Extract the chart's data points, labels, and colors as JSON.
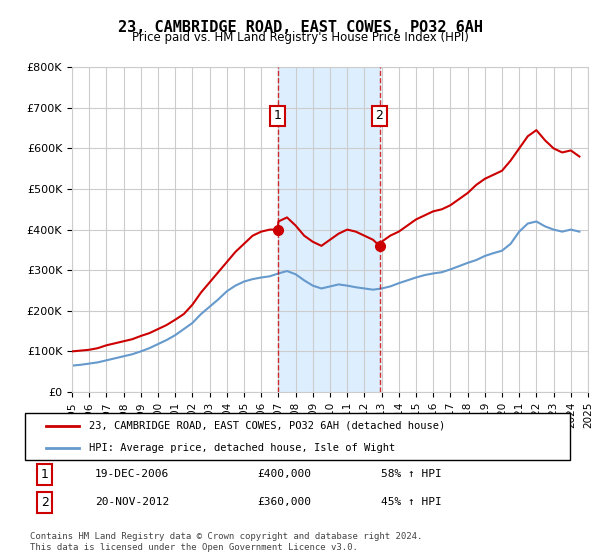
{
  "title": "23, CAMBRIDGE ROAD, EAST COWES, PO32 6AH",
  "subtitle": "Price paid vs. HM Land Registry's House Price Index (HPI)",
  "legend_line1": "23, CAMBRIDGE ROAD, EAST COWES, PO32 6AH (detached house)",
  "legend_line2": "HPI: Average price, detached house, Isle of Wight",
  "footnote": "Contains HM Land Registry data © Crown copyright and database right 2024.\nThis data is licensed under the Open Government Licence v3.0.",
  "sale1_label": "1",
  "sale1_date": "19-DEC-2006",
  "sale1_price": "£400,000",
  "sale1_hpi": "58% ↑ HPI",
  "sale1_year": 2006.96,
  "sale1_value": 400000,
  "sale2_label": "2",
  "sale2_date": "20-NOV-2012",
  "sale2_price": "£360,000",
  "sale2_hpi": "45% ↑ HPI",
  "sale2_year": 2012.88,
  "sale2_value": 360000,
  "ylim": [
    0,
    800000
  ],
  "xlim_start": 1995,
  "xlim_end": 2025,
  "red_color": "#cc0000",
  "blue_color": "#6699cc",
  "shade_color": "#ddeeff",
  "background_color": "#ffffff",
  "grid_color": "#cccccc",
  "years_red": [
    1995.0,
    1995.5,
    1996.0,
    1996.5,
    1997.0,
    1997.5,
    1998.0,
    1998.5,
    1999.0,
    1999.5,
    2000.0,
    2000.5,
    2001.0,
    2001.5,
    2002.0,
    2002.5,
    2003.0,
    2003.5,
    2004.0,
    2004.5,
    2005.0,
    2005.5,
    2006.0,
    2006.5,
    2006.96,
    2006.96,
    2007.0,
    2007.5,
    2008.0,
    2008.5,
    2009.0,
    2009.5,
    2010.0,
    2010.5,
    2011.0,
    2011.5,
    2012.0,
    2012.5,
    2012.88,
    2012.88,
    2013.0,
    2013.5,
    2014.0,
    2014.5,
    2015.0,
    2015.5,
    2016.0,
    2016.5,
    2017.0,
    2017.5,
    2018.0,
    2018.5,
    2019.0,
    2019.5,
    2020.0,
    2020.5,
    2021.0,
    2021.5,
    2022.0,
    2022.5,
    2023.0,
    2023.5,
    2024.0,
    2024.5
  ],
  "values_red": [
    100000,
    102000,
    104000,
    108000,
    115000,
    120000,
    125000,
    130000,
    138000,
    145000,
    155000,
    165000,
    178000,
    192000,
    215000,
    245000,
    270000,
    295000,
    320000,
    345000,
    365000,
    385000,
    395000,
    400000,
    400000,
    400000,
    420000,
    430000,
    410000,
    385000,
    370000,
    360000,
    375000,
    390000,
    400000,
    395000,
    385000,
    375000,
    360000,
    360000,
    370000,
    385000,
    395000,
    410000,
    425000,
    435000,
    445000,
    450000,
    460000,
    475000,
    490000,
    510000,
    525000,
    535000,
    545000,
    570000,
    600000,
    630000,
    645000,
    620000,
    600000,
    590000,
    595000,
    580000
  ],
  "years_blue": [
    1995.0,
    1995.5,
    1996.0,
    1996.5,
    1997.0,
    1997.5,
    1998.0,
    1998.5,
    1999.0,
    1999.5,
    2000.0,
    2000.5,
    2001.0,
    2001.5,
    2002.0,
    2002.5,
    2003.0,
    2003.5,
    2004.0,
    2004.5,
    2005.0,
    2005.5,
    2006.0,
    2006.5,
    2007.0,
    2007.5,
    2008.0,
    2008.5,
    2009.0,
    2009.5,
    2010.0,
    2010.5,
    2011.0,
    2011.5,
    2012.0,
    2012.5,
    2013.0,
    2013.5,
    2014.0,
    2014.5,
    2015.0,
    2015.5,
    2016.0,
    2016.5,
    2017.0,
    2017.5,
    2018.0,
    2018.5,
    2019.0,
    2019.5,
    2020.0,
    2020.5,
    2021.0,
    2021.5,
    2022.0,
    2022.5,
    2023.0,
    2023.5,
    2024.0,
    2024.5
  ],
  "values_blue": [
    65000,
    67000,
    70000,
    73000,
    78000,
    83000,
    88000,
    93000,
    100000,
    108000,
    118000,
    128000,
    140000,
    155000,
    170000,
    192000,
    210000,
    228000,
    248000,
    262000,
    272000,
    278000,
    282000,
    285000,
    292000,
    298000,
    290000,
    275000,
    262000,
    255000,
    260000,
    265000,
    262000,
    258000,
    255000,
    252000,
    255000,
    260000,
    268000,
    275000,
    282000,
    288000,
    292000,
    295000,
    302000,
    310000,
    318000,
    325000,
    335000,
    342000,
    348000,
    365000,
    395000,
    415000,
    420000,
    408000,
    400000,
    395000,
    400000,
    395000
  ],
  "xticks": [
    1995,
    1996,
    1997,
    1998,
    1999,
    2000,
    2001,
    2002,
    2003,
    2004,
    2005,
    2006,
    2007,
    2008,
    2009,
    2010,
    2011,
    2012,
    2013,
    2014,
    2015,
    2016,
    2017,
    2018,
    2019,
    2020,
    2021,
    2022,
    2023,
    2024,
    2025
  ]
}
